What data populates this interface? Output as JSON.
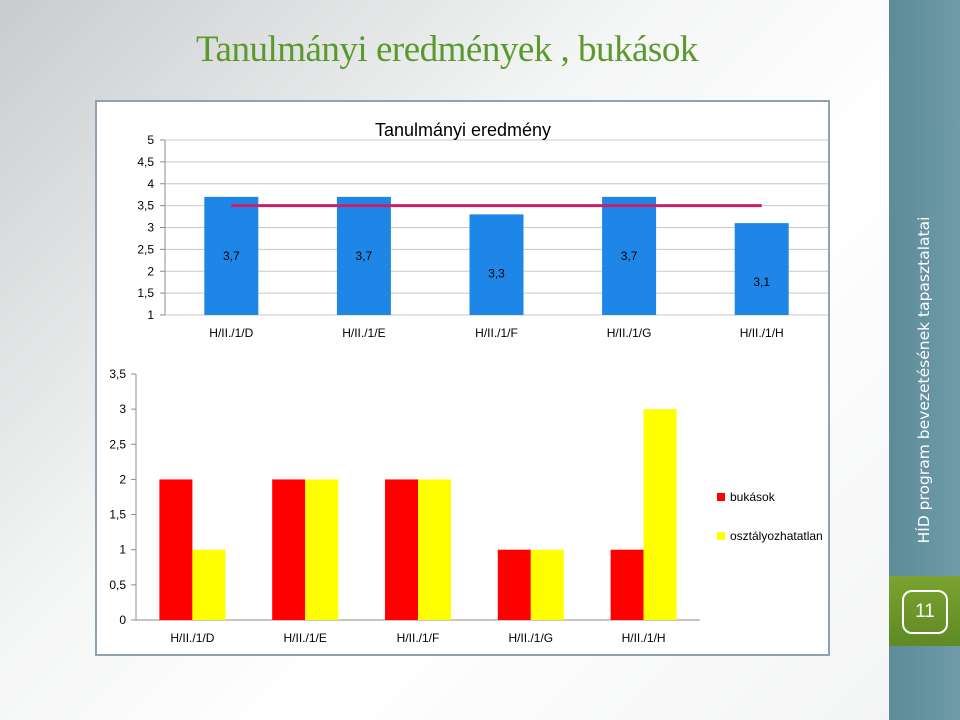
{
  "slide": {
    "title": "Tanulmányi eredmények , bukások",
    "side_text": "HÍD program bevezetésének tapasztalatai",
    "page_number": "11",
    "colors": {
      "title_green": "#5a9a2c",
      "side_band": "#6592a0",
      "page_box": "#6f982b"
    }
  },
  "chart_data": [
    {
      "type": "bar",
      "title": "Tanulmányi eredmény",
      "categories": [
        "H/II./1/D",
        "H/II./1/E",
        "H/II./1/F",
        "H/II./1/G",
        "H/II./1/H"
      ],
      "values": [
        3.7,
        3.7,
        3.3,
        3.7,
        3.1
      ],
      "data_labels": [
        "3,7",
        "3,7",
        "3,3",
        "3,7",
        "3,1"
      ],
      "reference_line": {
        "value": 3.5,
        "color": "#c8206a"
      },
      "ylim": [
        1,
        5
      ],
      "yticks": [
        "1",
        "1,5",
        "2",
        "2,5",
        "3",
        "3,5",
        "4",
        "4,5",
        "5"
      ],
      "grid": true,
      "bar_color": "#1e86e6"
    },
    {
      "type": "bar",
      "categories": [
        "H/II./1/D",
        "H/II./1/E",
        "H/II./1/F",
        "H/II./1/G",
        "H/II./1/H"
      ],
      "series": [
        {
          "name": "bukások",
          "values": [
            2,
            2,
            2,
            1,
            1
          ],
          "color": "#ff0000"
        },
        {
          "name": "osztályozhatatlan",
          "values": [
            1,
            2,
            2,
            1,
            3
          ],
          "color": "#ffff00"
        }
      ],
      "ylim": [
        0,
        3.5
      ],
      "yticks": [
        "0",
        "0,5",
        "1",
        "1,5",
        "2",
        "2,5",
        "3",
        "3,5"
      ],
      "grid": false,
      "legend": "right"
    }
  ]
}
